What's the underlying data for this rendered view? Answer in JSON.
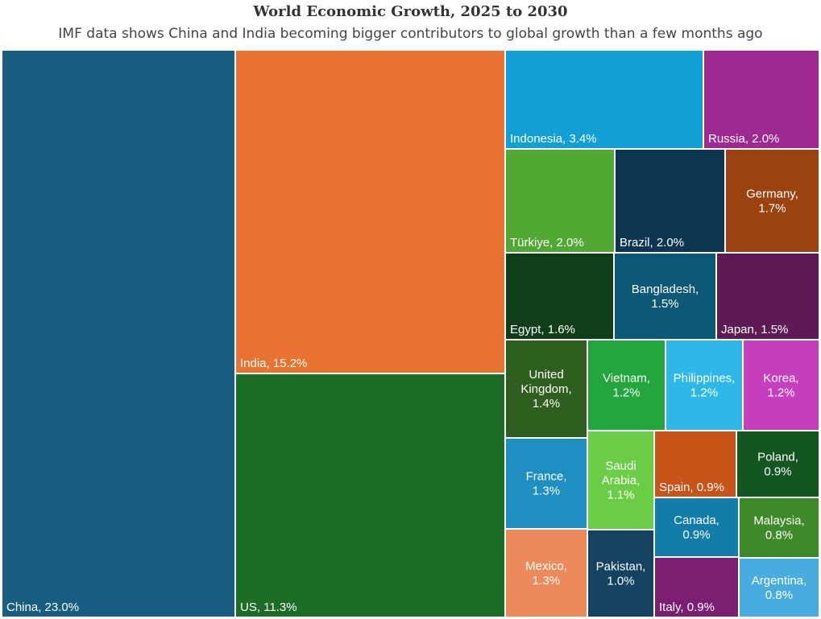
{
  "chart_data": {
    "type": "treemap",
    "title": "World Economic Growth, 2025 to 2030",
    "subtitle": "IMF data shows China and India becoming bigger contributors to global growth than a few months ago",
    "unit": "%",
    "items": [
      {
        "id": "china",
        "label": "China, 23.0%",
        "name": "China",
        "value": 23.0,
        "color": "#175E80"
      },
      {
        "id": "india",
        "label": "India, 15.2%",
        "name": "India",
        "value": 15.2,
        "color": "#E97330"
      },
      {
        "id": "us",
        "label": "US, 11.3%",
        "name": "US",
        "value": 11.3,
        "color": "#1C6D26"
      },
      {
        "id": "indonesia",
        "label": "Indonesia, 3.4%",
        "name": "Indonesia",
        "value": 3.4,
        "color": "#129FD6"
      },
      {
        "id": "russia",
        "label": "Russia, 2.0%",
        "name": "Russia",
        "value": 2.0,
        "color": "#9E2A91"
      },
      {
        "id": "turkiye",
        "label": "Türkiye, 2.0%",
        "name": "Türkiye",
        "value": 2.0,
        "color": "#51A833"
      },
      {
        "id": "brazil",
        "label": "Brazil, 2.0%",
        "name": "Brazil",
        "value": 2.0,
        "color": "#0E3652"
      },
      {
        "id": "germany",
        "label": "Germany,\n1.7%",
        "name": "Germany",
        "value": 1.7,
        "color": "#9A4210"
      },
      {
        "id": "egypt",
        "label": "Egypt, 1.6%",
        "name": "Egypt",
        "value": 1.6,
        "color": "#0F3E19"
      },
      {
        "id": "bangladesh",
        "label": "Bangladesh,\n1.5%",
        "name": "Bangladesh",
        "value": 1.5,
        "color": "#0E5877"
      },
      {
        "id": "japan",
        "label": "Japan, 1.5%",
        "name": "Japan",
        "value": 1.5,
        "color": "#5E1A55"
      },
      {
        "id": "united-kingdom",
        "label": "United\nKingdom,\n1.4%",
        "name": "United Kingdom",
        "value": 1.4,
        "color": "#2F5F1E"
      },
      {
        "id": "vietnam",
        "label": "Vietnam,\n1.2%",
        "name": "Vietnam",
        "value": 1.2,
        "color": "#22A63D"
      },
      {
        "id": "philippines",
        "label": "Philippines,\n1.2%",
        "name": "Philippines",
        "value": 1.2,
        "color": "#2EB8E8"
      },
      {
        "id": "korea",
        "label": "Korea,\n1.2%",
        "name": "Korea",
        "value": 1.2,
        "color": "#C43EBD"
      },
      {
        "id": "france",
        "label": "France,\n1.3%",
        "name": "France",
        "value": 1.3,
        "color": "#1F8FC2"
      },
      {
        "id": "saudi-arabia",
        "label": "Saudi\nArabia,\n1.1%",
        "name": "Saudi Arabia",
        "value": 1.1,
        "color": "#6BCC45"
      },
      {
        "id": "spain",
        "label": "Spain, 0.9%",
        "name": "Spain",
        "value": 0.9,
        "color": "#C95419"
      },
      {
        "id": "poland",
        "label": "Poland,\n0.9%",
        "name": "Poland",
        "value": 0.9,
        "color": "#145622"
      },
      {
        "id": "canada",
        "label": "Canada,\n0.9%",
        "name": "Canada",
        "value": 0.9,
        "color": "#127DAA"
      },
      {
        "id": "malaysia",
        "label": "Malaysia,\n0.8%",
        "name": "Malaysia",
        "value": 0.8,
        "color": "#3E8A28"
      },
      {
        "id": "mexico",
        "label": "Mexico,\n1.3%",
        "name": "Mexico",
        "value": 1.3,
        "color": "#ED8A5B"
      },
      {
        "id": "pakistan",
        "label": "Pakistan,\n1.0%",
        "name": "Pakistan",
        "value": 1.0,
        "color": "#134360"
      },
      {
        "id": "italy",
        "label": "Italy, 0.9%",
        "name": "Italy",
        "value": 0.9,
        "color": "#7B1F72"
      },
      {
        "id": "argentina",
        "label": "Argentina,\n0.8%",
        "name": "Argentina",
        "value": 0.8,
        "color": "#49ACDE"
      }
    ]
  }
}
